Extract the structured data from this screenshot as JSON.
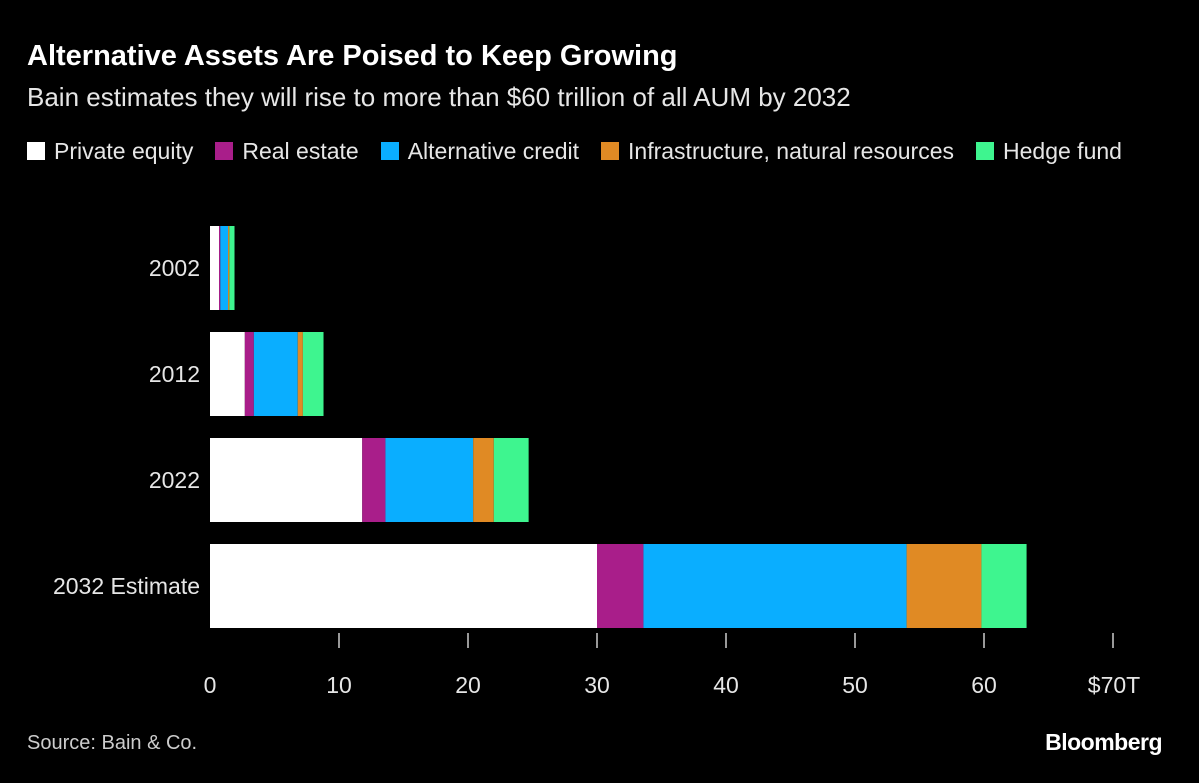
{
  "title": "Alternative Assets Are Poised to Keep Growing",
  "subtitle": "Bain estimates they will rise to more than $60 trillion of all AUM by 2032",
  "source": "Source: Bain & Co.",
  "logo": "Bloomberg",
  "chart_data": {
    "type": "bar",
    "orientation": "horizontal",
    "stacked": true,
    "title": "Alternative Assets Are Poised to Keep Growing",
    "subtitle": "Bain estimates they will rise to more than $60 trillion of all AUM by 2032",
    "categories": [
      "2002",
      "2012",
      "2022",
      "2032 Estimate"
    ],
    "series": [
      {
        "name": "Private equity",
        "color": "#ffffff",
        "values": [
          0.7,
          2.7,
          11.8,
          30.0
        ]
      },
      {
        "name": "Real estate",
        "color": "#a91e8a",
        "values": [
          0.1,
          0.7,
          1.8,
          3.6
        ]
      },
      {
        "name": "Alternative credit",
        "color": "#0aaeff",
        "values": [
          0.6,
          3.4,
          6.8,
          20.4
        ]
      },
      {
        "name": "Infrastructure, natural resources",
        "color": "#e08a24",
        "values": [
          0.1,
          0.4,
          1.6,
          5.8
        ]
      },
      {
        "name": "Hedge fund",
        "color": "#3ef58f",
        "values": [
          0.4,
          1.6,
          2.7,
          3.5
        ]
      }
    ],
    "xlim": [
      0,
      70
    ],
    "xticks": [
      0,
      10,
      20,
      30,
      40,
      50,
      60,
      70
    ],
    "xtick_labels": [
      "0",
      "10",
      "20",
      "30",
      "40",
      "50",
      "60",
      "$70T"
    ],
    "grid": false,
    "legend_placement": "top"
  }
}
